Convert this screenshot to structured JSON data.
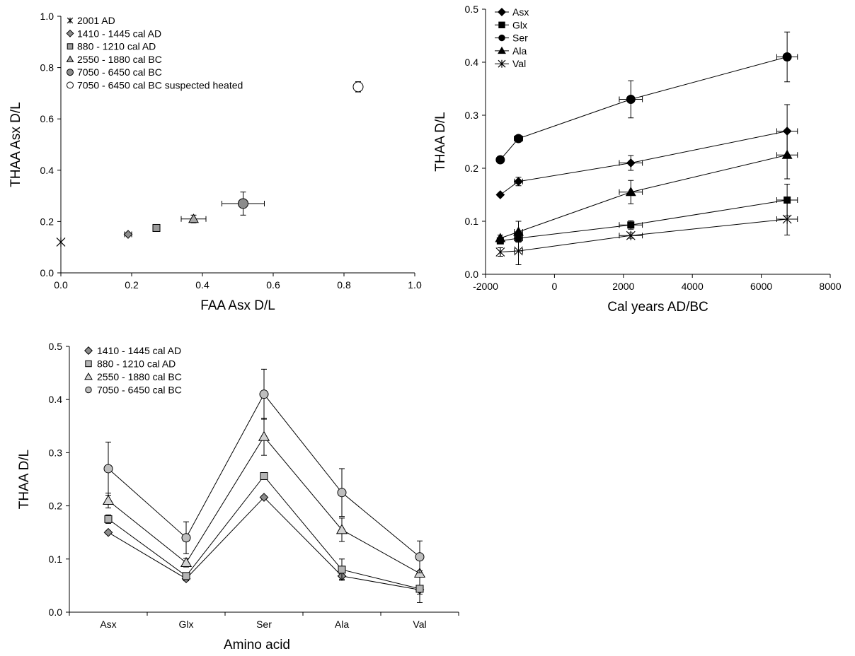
{
  "chart_data": [
    {
      "id": "A",
      "type": "scatter",
      "xlabel": "FAA Asx D/L",
      "ylabel": "THAA Asx D/L",
      "xlim": [
        0,
        1.0
      ],
      "ylim": [
        0,
        1.0
      ],
      "xticks": [
        "0.0",
        "0.2",
        "0.4",
        "0.6",
        "0.8",
        "1.0"
      ],
      "yticks": [
        "0.0",
        "0.2",
        "0.4",
        "0.6",
        "0.8",
        "1.0"
      ],
      "legend_position": "top-left",
      "series": [
        {
          "name": "2001 AD",
          "marker": "star",
          "fill": "none",
          "points": [
            {
              "x": 0.0,
              "y": 0.12
            }
          ]
        },
        {
          "name": "1410 - 1445 cal AD",
          "marker": "diamond",
          "fill": "#8c8c8c",
          "points": [
            {
              "x": 0.19,
              "y": 0.15,
              "xerr": 0.01,
              "yerr": 0.005
            }
          ]
        },
        {
          "name": "880 - 1210 cal AD",
          "marker": "square",
          "fill": "#9a9a9a",
          "points": [
            {
              "x": 0.27,
              "y": 0.175,
              "xerr": 0.005,
              "yerr": 0.005
            }
          ]
        },
        {
          "name": "2550  - 1880 cal BC",
          "marker": "triangle",
          "fill": "#a8a8a8",
          "points": [
            {
              "x": 0.375,
              "y": 0.21,
              "xerr": 0.035,
              "yerr": 0.015
            }
          ]
        },
        {
          "name": "7050 - 6450 cal BC",
          "marker": "circle",
          "fill": "#8c8c8c",
          "points": [
            {
              "x": 0.515,
              "y": 0.27,
              "xerr": 0.06,
              "yerr": 0.045
            }
          ]
        },
        {
          "name": "7050 - 6450 cal BC suspected heated",
          "marker": "circle",
          "fill": "#ffffff",
          "points": [
            {
              "x": 0.84,
              "y": 0.725,
              "xerr": 0.0,
              "yerr": 0.02
            }
          ]
        }
      ]
    },
    {
      "id": "B",
      "type": "line",
      "xlabel": "Cal years AD/BC",
      "ylabel": "THAA D/L",
      "xlim": [
        -2000,
        8000
      ],
      "ylim": [
        0,
        0.5
      ],
      "xticks": [
        "-2000",
        "0",
        "2000",
        "4000",
        "6000",
        "8000"
      ],
      "yticks": [
        "0.0",
        "0.1",
        "0.2",
        "0.3",
        "0.4",
        "0.5"
      ],
      "legend_position": "top-left",
      "series": [
        {
          "name": "Asx",
          "marker": "diamond",
          "points": [
            {
              "x": -1572,
              "y": 0.15,
              "xerr": 0,
              "yerr": 0.003
            },
            {
              "x": -1045,
              "y": 0.175,
              "xerr": 120,
              "yerr": 0.008
            },
            {
              "x": 2215,
              "y": 0.21,
              "xerr": 335,
              "yerr": 0.014
            },
            {
              "x": 6750,
              "y": 0.27,
              "xerr": 300,
              "yerr": 0.05
            }
          ]
        },
        {
          "name": "Glx",
          "marker": "square",
          "points": [
            {
              "x": -1572,
              "y": 0.063,
              "xerr": 0,
              "yerr": 0.004
            },
            {
              "x": -1045,
              "y": 0.068,
              "xerr": 120,
              "yerr": 0.004
            },
            {
              "x": 2215,
              "y": 0.093,
              "xerr": 335,
              "yerr": 0.008
            },
            {
              "x": 6750,
              "y": 0.14,
              "xerr": 300,
              "yerr": 0.03
            }
          ]
        },
        {
          "name": "Ser",
          "marker": "circle",
          "points": [
            {
              "x": -1572,
              "y": 0.216,
              "xerr": 0,
              "yerr": 0.003
            },
            {
              "x": -1045,
              "y": 0.256,
              "xerr": 120,
              "yerr": 0.004
            },
            {
              "x": 2215,
              "y": 0.33,
              "xerr": 335,
              "yerr": 0.035
            },
            {
              "x": 6750,
              "y": 0.41,
              "xerr": 300,
              "yerr": 0.047
            }
          ]
        },
        {
          "name": "Ala",
          "marker": "triangle",
          "points": [
            {
              "x": -1572,
              "y": 0.068,
              "xerr": 0,
              "yerr": 0.006
            },
            {
              "x": -1045,
              "y": 0.08,
              "xerr": 120,
              "yerr": 0.02
            },
            {
              "x": 2215,
              "y": 0.155,
              "xerr": 335,
              "yerr": 0.022
            },
            {
              "x": 6750,
              "y": 0.225,
              "xerr": 300,
              "yerr": 0.045
            }
          ]
        },
        {
          "name": "Val",
          "marker": "star",
          "points": [
            {
              "x": -1572,
              "y": 0.042,
              "xerr": 0,
              "yerr": 0.008
            },
            {
              "x": -1045,
              "y": 0.044,
              "xerr": 120,
              "yerr": 0.026
            },
            {
              "x": 2215,
              "y": 0.073,
              "xerr": 335,
              "yerr": 0.005
            },
            {
              "x": 6750,
              "y": 0.104,
              "xerr": 300,
              "yerr": 0.03
            }
          ]
        }
      ]
    },
    {
      "id": "C",
      "type": "line",
      "xlabel": "Amino acid",
      "ylabel": "THAA D/L",
      "categories": [
        "Asx",
        "Glx",
        "Ser",
        "Ala",
        "Val"
      ],
      "ylim": [
        0,
        0.5
      ],
      "yticks": [
        "0.0",
        "0.1",
        "0.2",
        "0.3",
        "0.4",
        "0.5"
      ],
      "legend_position": "top-left",
      "series": [
        {
          "name": "1410  - 1445 cal AD",
          "marker": "diamond",
          "fill": "#8c8c8c",
          "values": [
            0.15,
            0.063,
            0.216,
            0.068,
            0.042
          ],
          "yerr": [
            0.003,
            0.004,
            0.003,
            0.006,
            0.008
          ]
        },
        {
          "name": "880 - 1210 cal AD",
          "marker": "square",
          "fill": "#b4b4b4",
          "values": [
            0.175,
            0.068,
            0.256,
            0.08,
            0.044
          ],
          "yerr": [
            0.008,
            0.004,
            0.004,
            0.02,
            0.026
          ]
        },
        {
          "name": "2550  - 1880 cal BC",
          "marker": "triangle",
          "fill": "#d2d2d2",
          "values": [
            0.21,
            0.093,
            0.33,
            0.155,
            0.073
          ],
          "yerr": [
            0.014,
            0.008,
            0.035,
            0.022,
            0.005
          ]
        },
        {
          "name": "7050  - 6450 cal BC",
          "marker": "circle",
          "fill": "#bebebe",
          "values": [
            0.27,
            0.14,
            0.41,
            0.225,
            0.104
          ],
          "yerr": [
            0.05,
            0.03,
            0.047,
            0.045,
            0.03
          ]
        }
      ]
    }
  ]
}
